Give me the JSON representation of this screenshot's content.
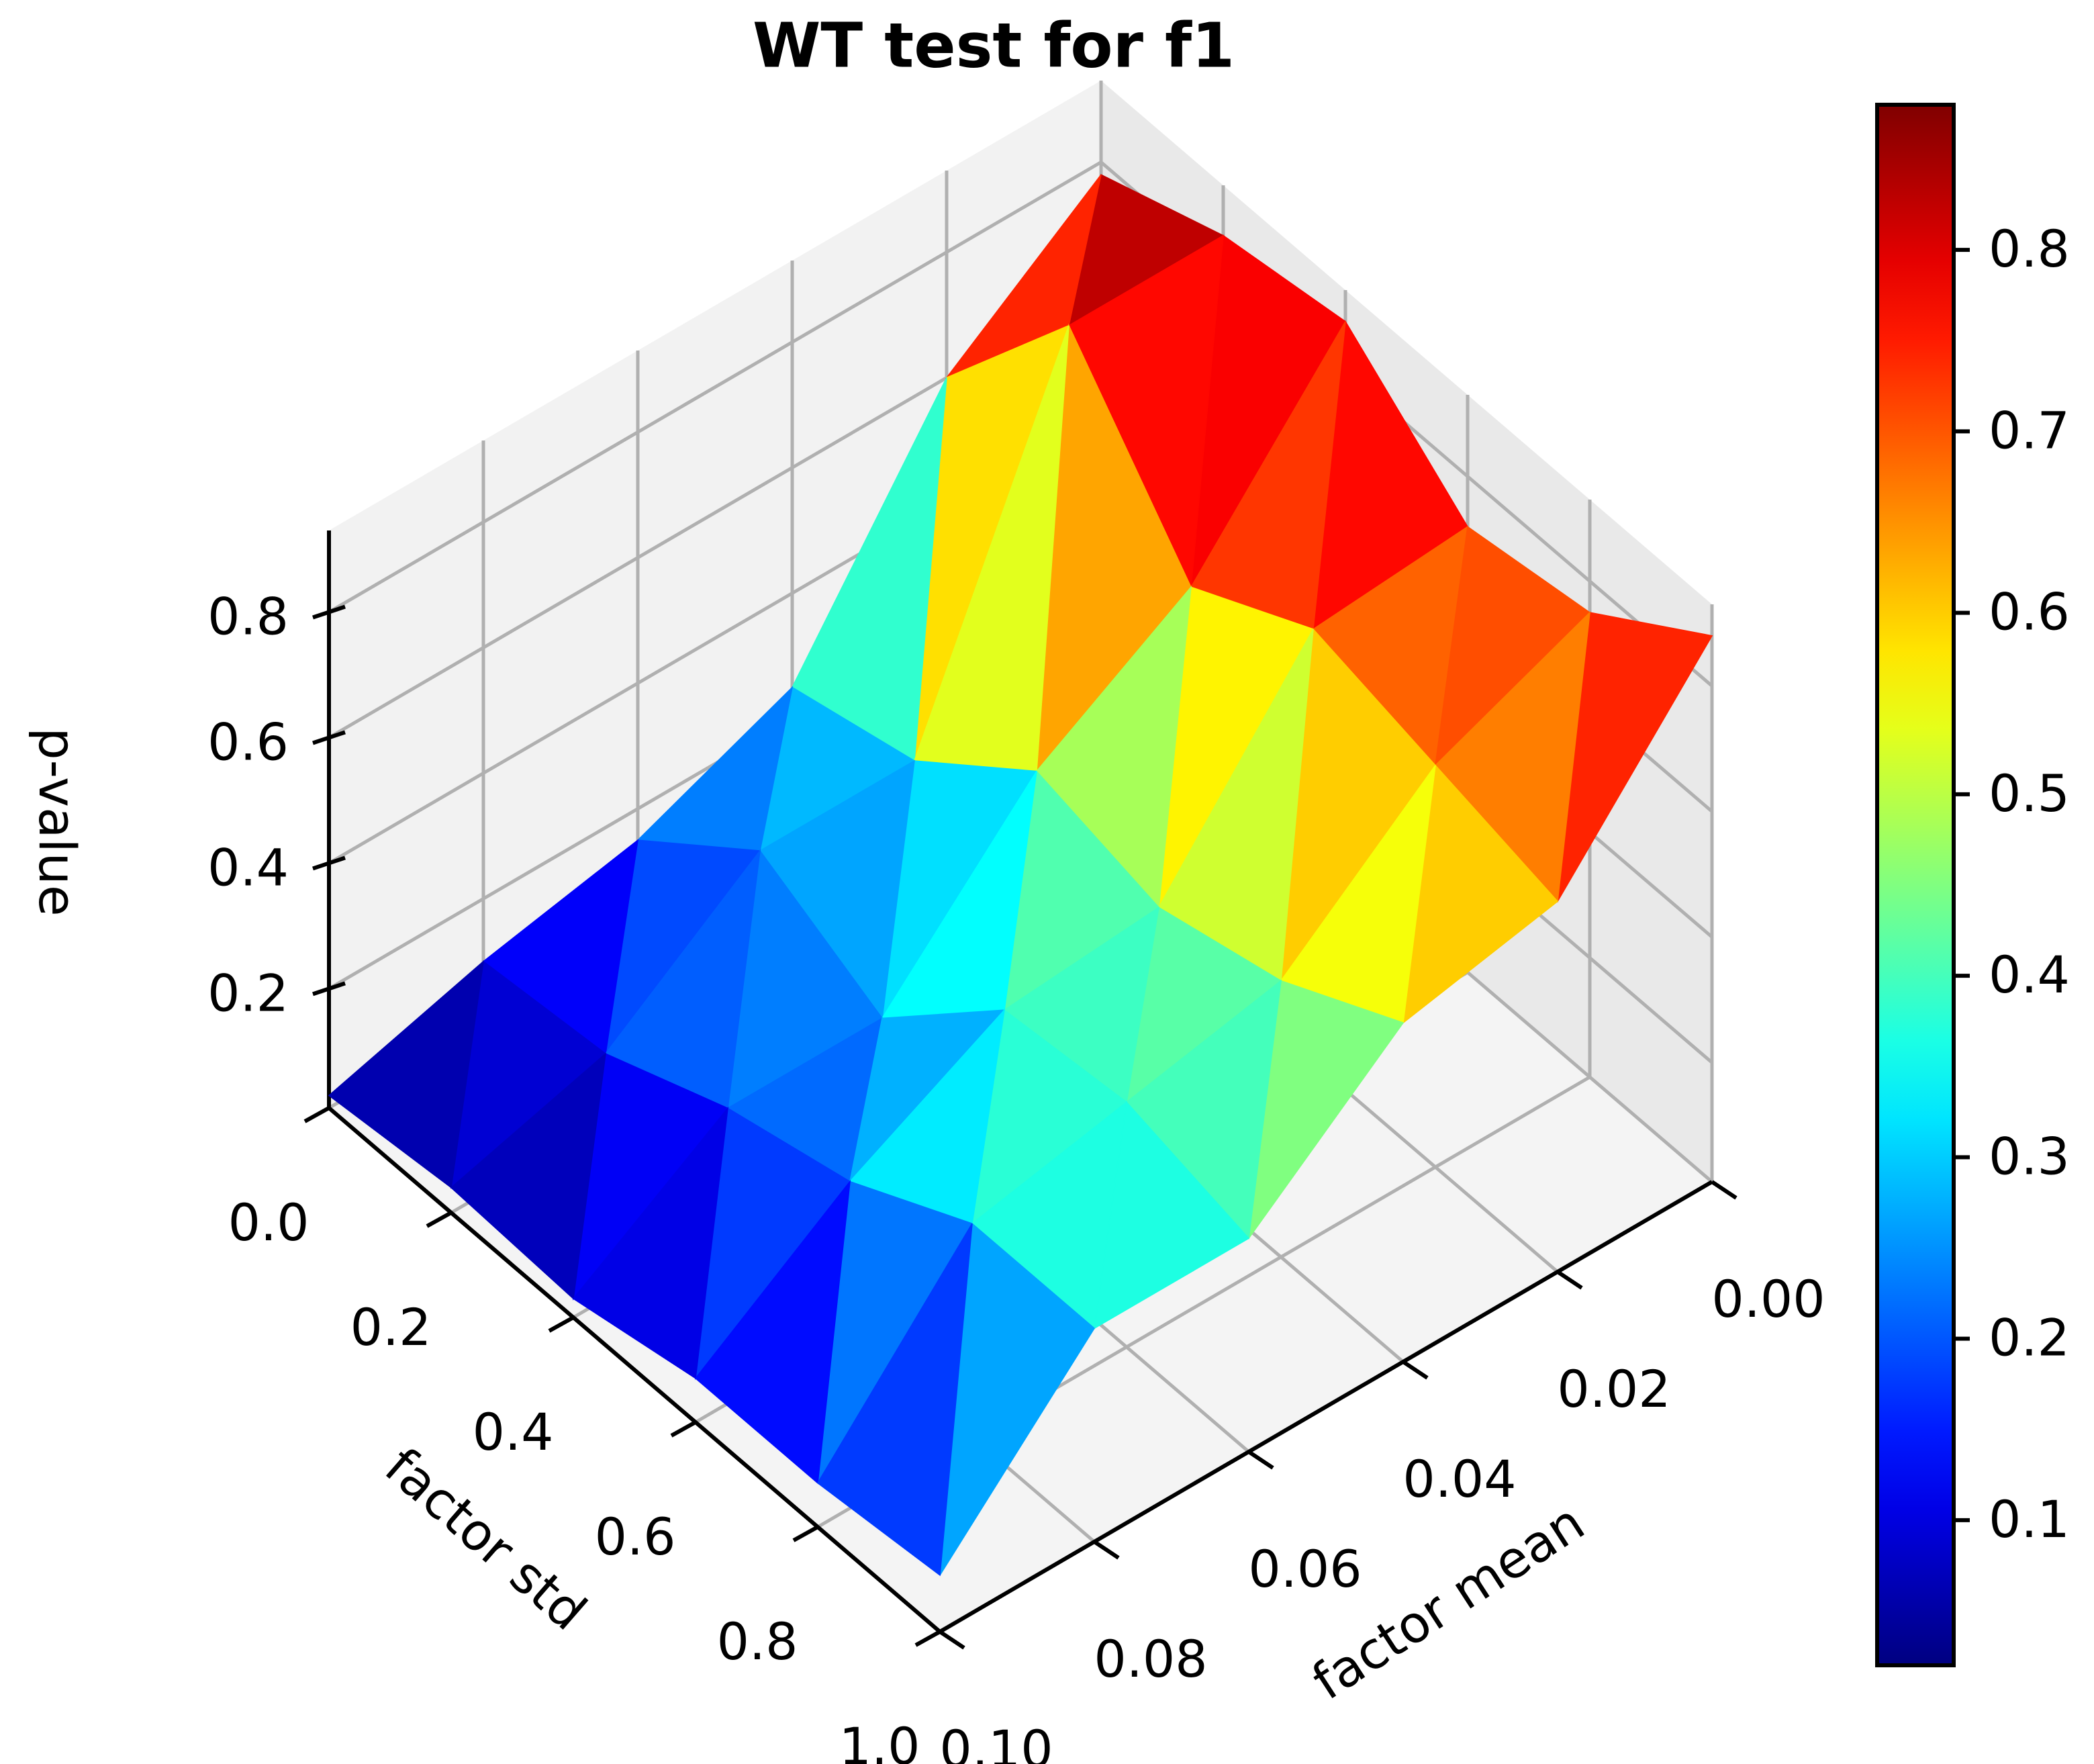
{
  "chart_data": {
    "type": "surface",
    "title": "WT test for f1",
    "xlabel": "factor std",
    "ylabel": "factor mean",
    "zlabel": "p-value",
    "x": [
      0,
      0.2,
      0.4,
      0.6,
      0.8,
      1.0
    ],
    "y": [
      0,
      0.02,
      0.04,
      0.06,
      0.08,
      0.1
    ],
    "z": [
      [
        0.78,
        0.6,
        0.25,
        0.15,
        0.1,
        0.03
      ],
      [
        0.85,
        0.85,
        0.3,
        0.3,
        0.12,
        0.05
      ],
      [
        0.88,
        0.6,
        0.45,
        0.2,
        0.2,
        0.04
      ],
      [
        0.72,
        0.7,
        0.4,
        0.38,
        0.25,
        0.08
      ],
      [
        0.75,
        0.65,
        0.45,
        0.4,
        0.35,
        0.08
      ],
      [
        0.88,
        0.6,
        0.55,
        0.35,
        0.35,
        0.1
      ]
    ],
    "xlim": [
      0,
      1
    ],
    "ylim": [
      0,
      0.1
    ],
    "zlim": [
      0.01,
      0.93
    ],
    "xticks": [
      {
        "value": 0,
        "label": "0.0"
      },
      0.2,
      0.4,
      0.6,
      0.8,
      {
        "value": 1,
        "label": "1.0"
      }
    ],
    "yticks": [
      {
        "value": 0,
        "label": "0.00"
      },
      0.02,
      0.04,
      0.06,
      0.08,
      {
        "value": 0.1,
        "label": "0.10"
      }
    ],
    "zticks": [
      0.2,
      0.4,
      0.6,
      0.8
    ],
    "colormap": "jet",
    "clim": [
      0.02,
      0.88
    ],
    "colorbar_ticks": [
      0.1,
      0.2,
      0.3,
      0.4,
      0.5,
      0.6,
      0.7,
      0.8
    ],
    "grid": true
  }
}
